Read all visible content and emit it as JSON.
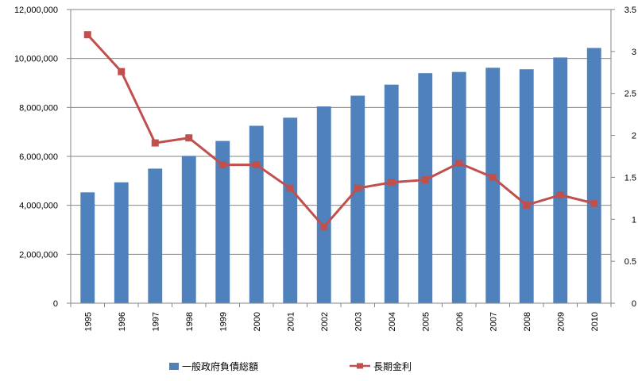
{
  "chart_data": {
    "type": "bar+line",
    "categories": [
      "1995",
      "1996",
      "1997",
      "1998",
      "1999",
      "2000",
      "2001",
      "2002",
      "2003",
      "2004",
      "2005",
      "2006",
      "2007",
      "2008",
      "2009",
      "2010"
    ],
    "series": [
      {
        "name": "一般政府負債総額",
        "type": "bar",
        "axis": "left",
        "color": "#4F81BD",
        "values": [
          4530000,
          4940000,
          5500000,
          6020000,
          6630000,
          7250000,
          7580000,
          8040000,
          8480000,
          8930000,
          9400000,
          9450000,
          9620000,
          9560000,
          10040000,
          10430000
        ]
      },
      {
        "name": "長期金利",
        "type": "line",
        "axis": "right",
        "color": "#C0504D",
        "values": [
          3.2,
          2.76,
          1.91,
          1.97,
          1.65,
          1.65,
          1.37,
          0.91,
          1.37,
          1.44,
          1.47,
          1.67,
          1.5,
          1.17,
          1.29,
          1.19
        ]
      }
    ],
    "y_left": {
      "min": 0,
      "max": 12000000,
      "step": 2000000,
      "tick_labels": [
        "0",
        "2,000,000",
        "4,000,000",
        "6,000,000",
        "8,000,000",
        "10,000,000",
        "12,000,000"
      ]
    },
    "y_right": {
      "min": 0,
      "max": 3.5,
      "step": 0.5,
      "tick_labels": [
        "0",
        "0.5",
        "1",
        "1.5",
        "2",
        "2.5",
        "3",
        "3.5"
      ]
    },
    "grid": true,
    "legend": "bottom",
    "x_tick_rotation": "vertical"
  }
}
